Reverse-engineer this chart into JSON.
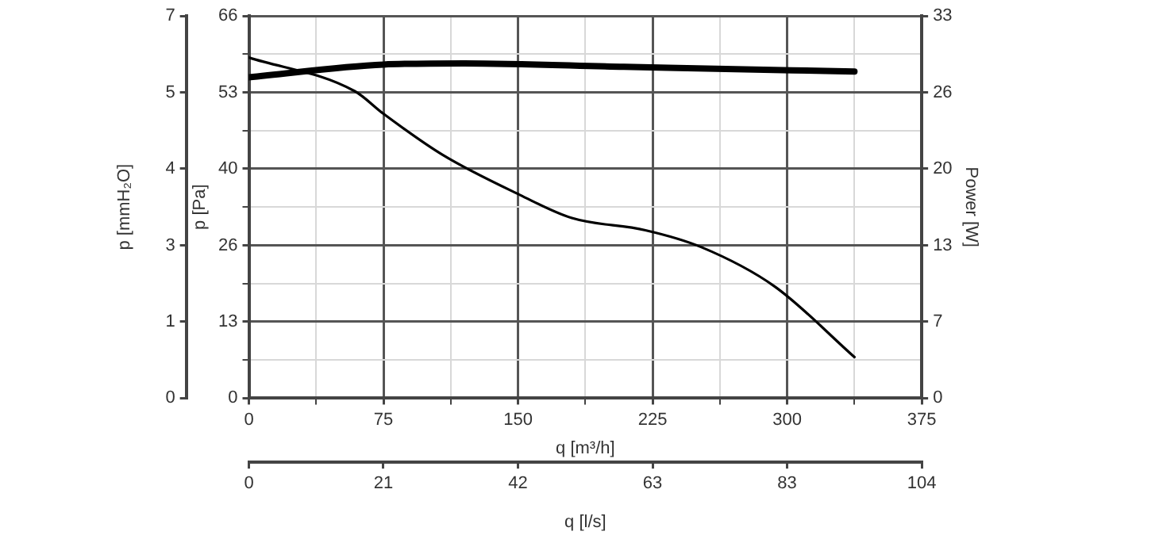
{
  "chart_data": {
    "type": "line",
    "xlabel": "q [m³/h]",
    "ylabel": "p [Pa]",
    "y2label": "Power [W]",
    "y3label": "p [mmH₂O]",
    "x2label": "q [l/s]",
    "xlim": [
      0,
      375
    ],
    "xticks": [
      0,
      {
        "value": 37.5,
        "label": null
      },
      75,
      {
        "value": 112.5,
        "label": null
      },
      150,
      {
        "value": 187.5,
        "label": null
      },
      225,
      {
        "value": 262.5,
        "label": null
      },
      300,
      {
        "value": 337.5,
        "label": null
      },
      375
    ],
    "ylim": [
      0,
      66
    ],
    "yticks": [
      0,
      {
        "value": 6.6,
        "label": null
      },
      {
        "value": 13.2,
        "label": "13"
      },
      {
        "value": 19.8,
        "label": null
      },
      {
        "value": 26.4,
        "label": "26"
      },
      {
        "value": 33,
        "label": null
      },
      {
        "value": 39.6,
        "label": "40"
      },
      {
        "value": 46.2,
        "label": null
      },
      {
        "value": 52.8,
        "label": "53"
      },
      {
        "value": 59.4,
        "label": null
      },
      66
    ],
    "y2lim": [
      0,
      33
    ],
    "y2ticks": [
      0,
      {
        "value": 6.6,
        "label": "7"
      },
      {
        "value": 13.2,
        "label": "13"
      },
      {
        "value": 19.8,
        "label": "20"
      },
      {
        "value": 26.4,
        "label": "26"
      },
      33
    ],
    "y3lim": [
      0,
      6.73
    ],
    "y3ticks": [
      0,
      {
        "value": 1.35,
        "label": "1"
      },
      {
        "value": 2.69,
        "label": "3"
      },
      {
        "value": 4.04,
        "label": "4"
      },
      {
        "value": 5.38,
        "label": "5"
      },
      {
        "value": 6.73,
        "label": "7"
      }
    ],
    "x2lim": [
      0,
      104.17
    ],
    "x2ticks": [
      0,
      {
        "value": 20.83,
        "label": "21"
      },
      {
        "value": 41.67,
        "label": "42"
      },
      {
        "value": 62.5,
        "label": "63"
      },
      {
        "value": 83.33,
        "label": "83"
      },
      {
        "value": 104.17,
        "label": "104"
      }
    ],
    "grid": true,
    "marker": "none",
    "line_style": "solid",
    "series": [
      {
        "color": "#000000",
        "x": [
          0,
          59,
          75,
          108,
          151,
          180,
          221,
          252,
          293,
          337.5
        ],
        "values": [
          58.8,
          53.0,
          49.1,
          42.0,
          35.1,
          31.1,
          29.0,
          26.1,
          19.3,
          7.1
        ]
      },
      {
        "color": "#000000",
        "axis": "y2",
        "x": [
          0,
          75,
          120,
          209,
          303,
          337.5
        ],
        "values": [
          27.7,
          28.8,
          28.9,
          28.6,
          28.3,
          28.2
        ]
      }
    ]
  }
}
